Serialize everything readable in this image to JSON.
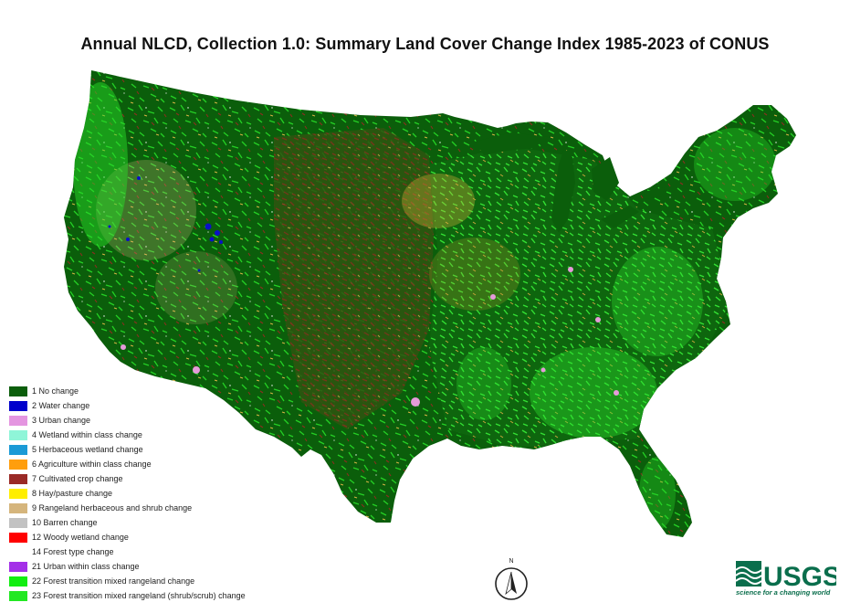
{
  "title": "Annual NLCD, Collection 1.0: Summary Land Cover Change Index 1985-2023 of CONUS",
  "map": {
    "region": "CONUS",
    "base_color": "#0b5e0b",
    "texture_colors": [
      "#1fd01f",
      "#3ee83e",
      "#8c2c1e",
      "#c7a96c",
      "#e0c035",
      "#e59bd9",
      "#0a10c8",
      "#ffffff"
    ]
  },
  "legend": [
    {
      "label": "1 No change",
      "color": "#0b5e0b"
    },
    {
      "label": "2 Water change",
      "color": "#0000cc"
    },
    {
      "label": "3 Urban change",
      "color": "#e495e0"
    },
    {
      "label": "4 Wetland within class change",
      "color": "#8ff5d8"
    },
    {
      "label": "5 Herbaceous wetland change",
      "color": "#1b9ad6"
    },
    {
      "label": "6 Agriculture within class change",
      "color": "#ff9e0d"
    },
    {
      "label": "7 Cultivated crop change",
      "color": "#9a2a26"
    },
    {
      "label": "8 Hay/pasture change",
      "color": "#ffee00"
    },
    {
      "label": "9 Rangeland herbaceous and shrub change",
      "color": "#d5b57c"
    },
    {
      "label": "10 Barren change",
      "color": "#c2c2c2"
    },
    {
      "label": "12 Woody wetland change",
      "color": "#ff0000"
    },
    {
      "label": "14 Forest type change",
      "color": "#ffffff"
    },
    {
      "label": "21 Urban within class change",
      "color": "#a430e8"
    },
    {
      "label": "22 Forest transition mixed rangeland change",
      "color": "#11ee11"
    },
    {
      "label": "23 Forest transition mixed rangeland (shrub/scrub) change",
      "color": "#22e822"
    }
  ],
  "north_arrow": {
    "label": "N",
    "icon": "north-arrow-icon"
  },
  "logo": {
    "text": "USGS",
    "tagline": "science for a changing world",
    "color": "#0a6e4c"
  }
}
